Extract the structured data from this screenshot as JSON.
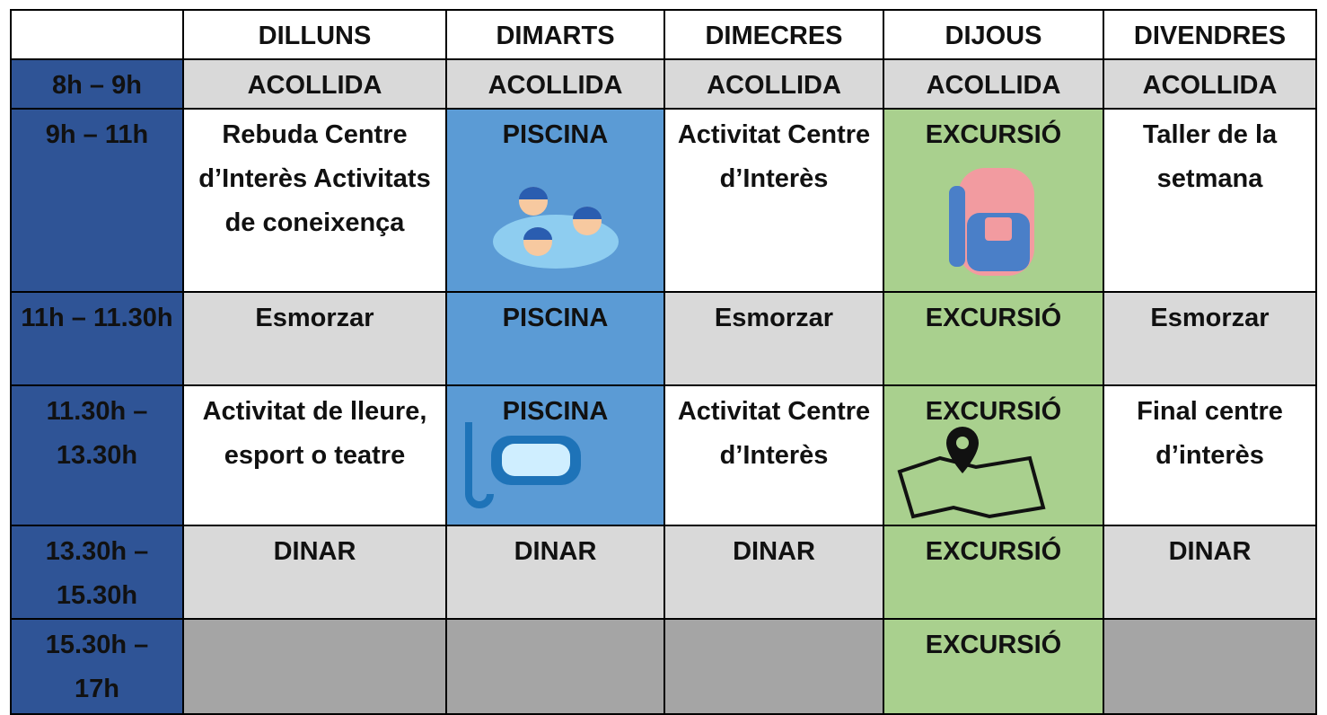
{
  "table": {
    "header": [
      "DILLUNS",
      "DIMARTS",
      "DIMECRES",
      "DIJOUS",
      "DIVENDRES"
    ],
    "rows": [
      {
        "time": "8h – 9h",
        "cells": [
          "ACOLLIDA",
          "ACOLLIDA",
          "ACOLLIDA",
          "ACOLLIDA",
          "ACOLLIDA"
        ]
      },
      {
        "time": "9h – 11h",
        "cells": [
          "Rebuda Centre d’Interès Activitats de coneixença",
          "PISCINA",
          "Activitat Centre d’Interès",
          "EXCURSIÓ",
          "Taller de la setmana"
        ]
      },
      {
        "time": "11h – 11.30h",
        "cells": [
          "Esmorzar",
          "PISCINA",
          "Esmorzar",
          "EXCURSIÓ",
          "Esmorzar"
        ]
      },
      {
        "time": "11.30h – 13.30h",
        "cells": [
          "Activitat de lleure, esport o teatre",
          "PISCINA",
          "Activitat Centre d’Interès",
          "EXCURSIÓ",
          "Final centre d’interès"
        ]
      },
      {
        "time": "13.30h – 15.30h",
        "cells": [
          "DINAR",
          "DINAR",
          "DINAR",
          "EXCURSIÓ",
          "DINAR"
        ]
      },
      {
        "time": "15.30h – 17h",
        "cells": [
          null,
          null,
          null,
          "EXCURSIÓ",
          null
        ]
      }
    ]
  }
}
